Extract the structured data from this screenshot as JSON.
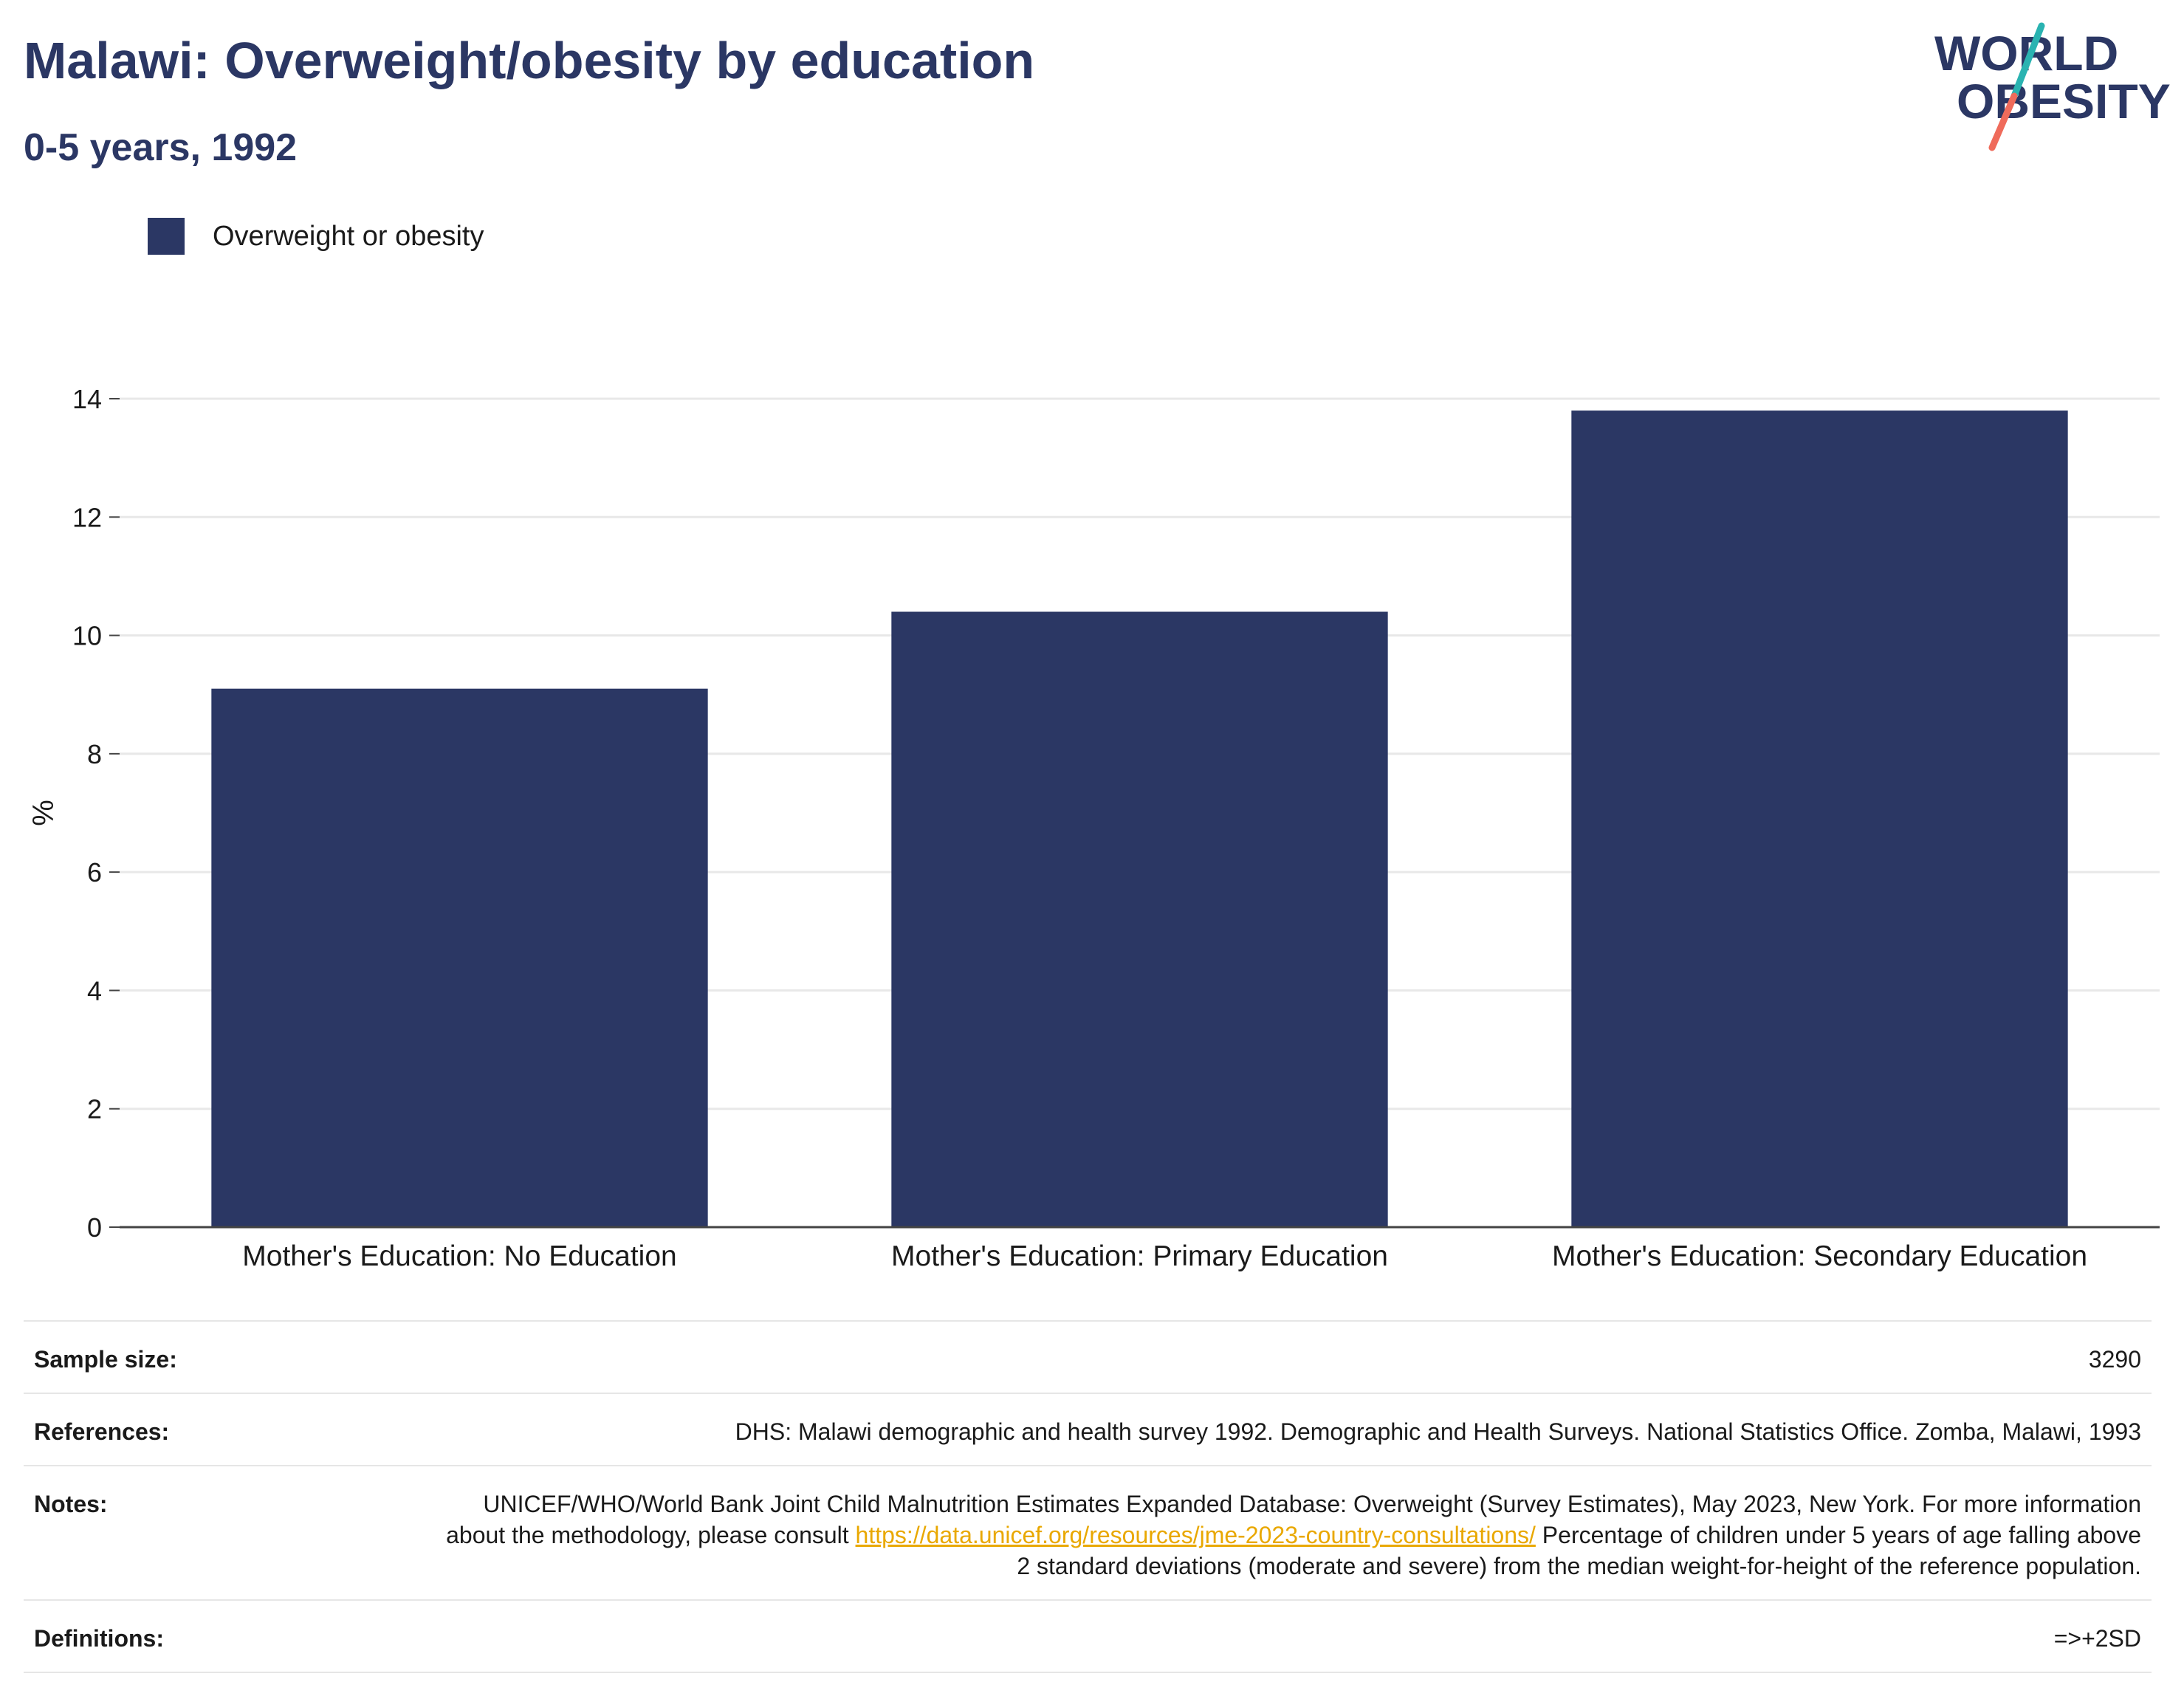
{
  "header": {
    "title": "Malawi: Overweight/obesity by education",
    "subtitle": "0-5 years, 1992"
  },
  "logo": {
    "line1": "WORLD",
    "line2": "OBESITY"
  },
  "colors": {
    "bar": "#2b3764",
    "grid": "#e8e8e8",
    "accent_teal": "#2ab3b1",
    "accent_coral": "#ef6b5b",
    "link": "#e9a800"
  },
  "chart_data": {
    "type": "bar",
    "categories": [
      "Mother's Education: No Education",
      "Mother's Education: Primary Education",
      "Mother's Education: Secondary Education"
    ],
    "series": [
      {
        "name": "Overweight or obesity",
        "values": [
          9.1,
          10.4,
          13.8
        ]
      }
    ],
    "ylabel": "%",
    "xlabel": "",
    "ylim": [
      0,
      14
    ],
    "yticks": [
      0,
      2,
      4,
      6,
      8,
      10,
      12,
      14
    ],
    "grid": true,
    "legend": "top-left"
  },
  "meta": {
    "sample_size_label": "Sample size:",
    "sample_size_value": "3290",
    "references_label": "References:",
    "references_value": "DHS: Malawi demographic and health survey 1992. Demographic and Health Surveys. National Statistics Office. Zomba, Malawi, 1993",
    "notes_label": "Notes:",
    "notes_pre": "UNICEF/WHO/World Bank Joint Child Malnutrition Estimates Expanded Database: Overweight (Survey Estimates), May 2023, New York. For more information about the methodology, please consult ",
    "notes_link": "https://data.unicef.org/resources/jme-2023-country-consultations/",
    "notes_post": " Percentage of children under 5 years of age falling above 2 standard deviations (moderate and severe) from the median weight-for-height of the reference population.",
    "definitions_label": "Definitions:",
    "definitions_value": "=>+2SD"
  }
}
